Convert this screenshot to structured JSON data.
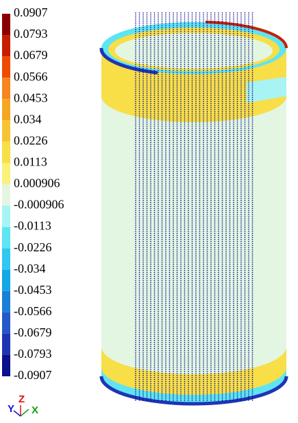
{
  "legend": {
    "labels": [
      "0.0907",
      "0.0793",
      "0.0679",
      "0.0566",
      "0.0453",
      "0.034",
      "0.0226",
      "0.0113",
      "0.000906",
      "-0.000906",
      "-0.0113",
      "-0.0226",
      "-0.034",
      "-0.0453",
      "-0.0566",
      "-0.0679",
      "-0.0793",
      "-0.0907"
    ],
    "colors": [
      "#8b0000",
      "#c81e00",
      "#f04a00",
      "#f6851f",
      "#f5a623",
      "#f7c431",
      "#f8de47",
      "#f9f17a",
      "#e4f6e2",
      "#a8f4f4",
      "#5fe4f3",
      "#2fc8f0",
      "#12a7e6",
      "#1a7fd6",
      "#2457c8",
      "#1f34b4",
      "#0b108c"
    ]
  },
  "triad": {
    "y": "Y",
    "z": "Z",
    "x": "X"
  }
}
